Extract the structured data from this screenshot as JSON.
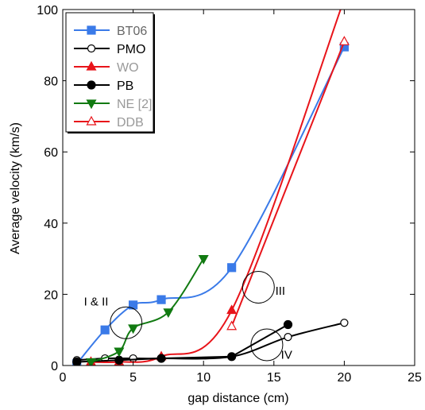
{
  "chart_data": {
    "type": "line",
    "xlabel": "gap distance (cm)",
    "ylabel": "Average velocity (km/s)",
    "xlim": [
      0,
      25
    ],
    "ylim": [
      0,
      100
    ],
    "x_ticks": [
      0,
      5,
      10,
      15,
      20,
      25
    ],
    "y_ticks": [
      0,
      20,
      40,
      60,
      80,
      100
    ],
    "x_tick_labels": [
      "0",
      "5",
      "10",
      "15",
      "20",
      "25"
    ],
    "y_tick_labels": [
      "0",
      "20",
      "40",
      "60",
      "80",
      "100"
    ],
    "grid": false,
    "legend_position": "top-left",
    "series": [
      {
        "name": "BT06",
        "color": "#3a7ae8",
        "marker": "square",
        "filled": true,
        "curve": "smooth",
        "label_color": "#666666",
        "points": [
          [
            1,
            0.5
          ],
          [
            3,
            10
          ],
          [
            5,
            17
          ],
          [
            7,
            18.5
          ],
          [
            12,
            27.5
          ],
          [
            20,
            89.5
          ]
        ]
      },
      {
        "name": "PMO",
        "color": "#000000",
        "marker": "circle",
        "filled": false,
        "curve": "smooth",
        "label_color": "#000000",
        "points": [
          [
            1,
            1.5
          ],
          [
            3,
            2
          ],
          [
            5,
            2
          ],
          [
            7,
            2
          ],
          [
            12,
            2.5
          ],
          [
            16,
            8
          ],
          [
            20,
            12
          ]
        ]
      },
      {
        "name": "WO",
        "color": "#e8141a",
        "marker": "triangle-up",
        "filled": true,
        "curve": "smooth",
        "label_color": "#999999",
        "points": [
          [
            2,
            1
          ],
          [
            4,
            1
          ],
          [
            7,
            2.5
          ],
          [
            12,
            15.5
          ],
          [
            20,
            103
          ]
        ]
      },
      {
        "name": "PB",
        "color": "#000000",
        "marker": "circle",
        "filled": true,
        "curve": "linear",
        "label_color": "#000000",
        "points": [
          [
            1,
            1
          ],
          [
            4,
            1.5
          ],
          [
            7,
            2
          ],
          [
            12,
            2.5
          ],
          [
            16,
            11.5
          ]
        ]
      },
      {
        "name": "NE [2]",
        "color": "#117a11",
        "marker": "triangle-down",
        "filled": true,
        "curve": "smooth",
        "label_color": "#999999",
        "points": [
          [
            2,
            1
          ],
          [
            4,
            4
          ],
          [
            5,
            10.5
          ],
          [
            7.5,
            15
          ],
          [
            10,
            30
          ]
        ]
      },
      {
        "name": "DDB",
        "color": "#e8141a",
        "marker": "triangle-up",
        "filled": false,
        "curve": "smooth",
        "label_color": "#999999",
        "points": [
          [
            12,
            11
          ],
          [
            20,
            91
          ]
        ]
      }
    ],
    "annotations": [
      {
        "text": "I & II",
        "circle_center": [
          4.5,
          12
        ],
        "label_position": [
          1.5,
          18
        ]
      },
      {
        "text": "III",
        "circle_center": [
          13.9,
          22
        ],
        "label_position": [
          15.1,
          21
        ]
      },
      {
        "text": "IV",
        "circle_center": [
          14.5,
          5.8
        ],
        "label_position": [
          15.5,
          3
        ]
      }
    ]
  }
}
